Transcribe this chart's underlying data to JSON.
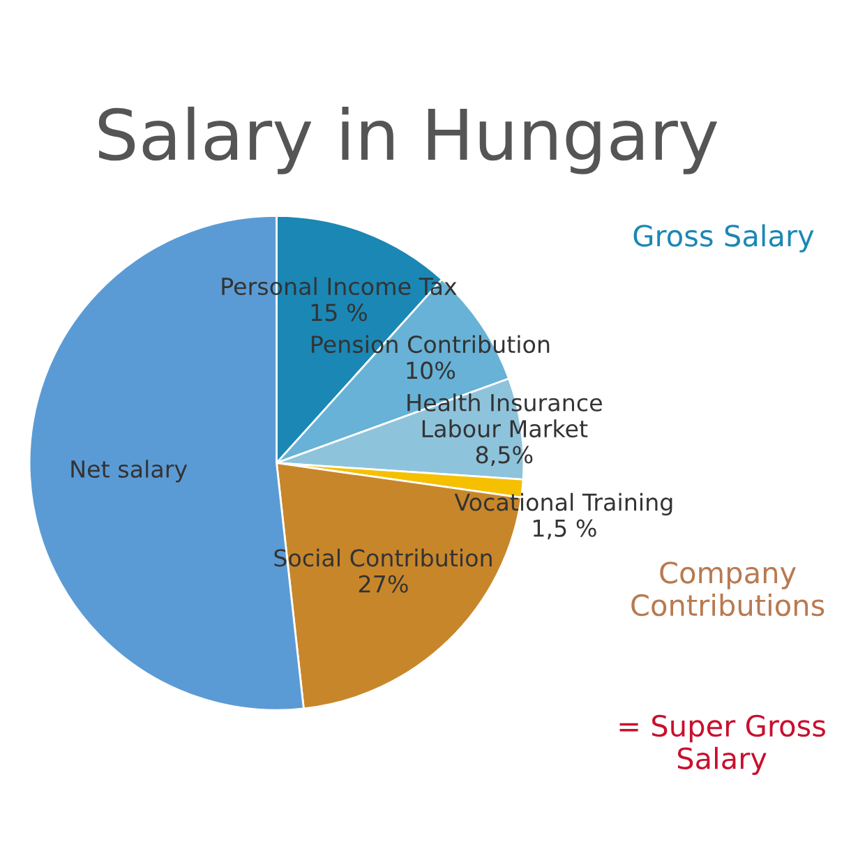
{
  "chart_data": {
    "type": "pie",
    "title": "Salary in Hungary",
    "categories": [
      "Personal Income Tax",
      "Pension Contribution",
      "Health Insurance\nLabour Market",
      "Vocational Training",
      "Social Contribution",
      "Net salary"
    ],
    "values": [
      15,
      10,
      8.5,
      1.5,
      27,
      66.5
    ],
    "value_labels": [
      "15 %",
      "10%",
      "8,5%",
      "1,5 %",
      "27%",
      null
    ],
    "colors": [
      "#1b87b5",
      "#67b2d6",
      "#8ec3dc",
      "#f5c000",
      "#c8862a",
      "#5b9bd5"
    ],
    "annotations": [
      "Gross Salary",
      "Company\nContributions",
      "= Super Gross\nSalary"
    ],
    "legend": false
  }
}
